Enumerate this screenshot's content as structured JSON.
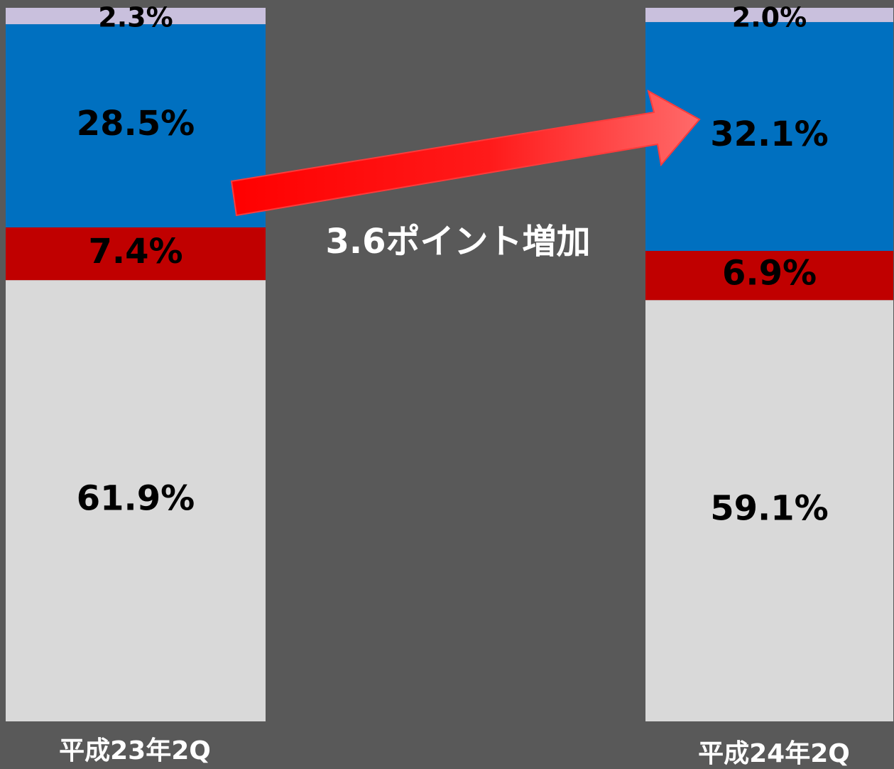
{
  "chart_data": {
    "type": "stacked_bar",
    "categories": [
      "平成23年2Q",
      "平成24年2Q"
    ],
    "ylim": [
      0,
      100
    ],
    "series": [
      {
        "color": "#d9d9d9",
        "values": [
          61.9,
          59.1
        ],
        "value_labels": [
          "61.9%",
          "59.1%"
        ]
      },
      {
        "color": "#c00000",
        "values": [
          7.4,
          6.9
        ],
        "value_labels": [
          "7.4%",
          "6.9%"
        ]
      },
      {
        "color": "#0070c0",
        "values": [
          28.5,
          32.1
        ],
        "value_labels": [
          "28.5%",
          "32.1%"
        ]
      },
      {
        "color": "#c9c0dd",
        "values": [
          2.3,
          2.0
        ],
        "value_labels": [
          "2.3%",
          "2.0%"
        ]
      }
    ],
    "annotation": "3.6ポイント増加"
  }
}
